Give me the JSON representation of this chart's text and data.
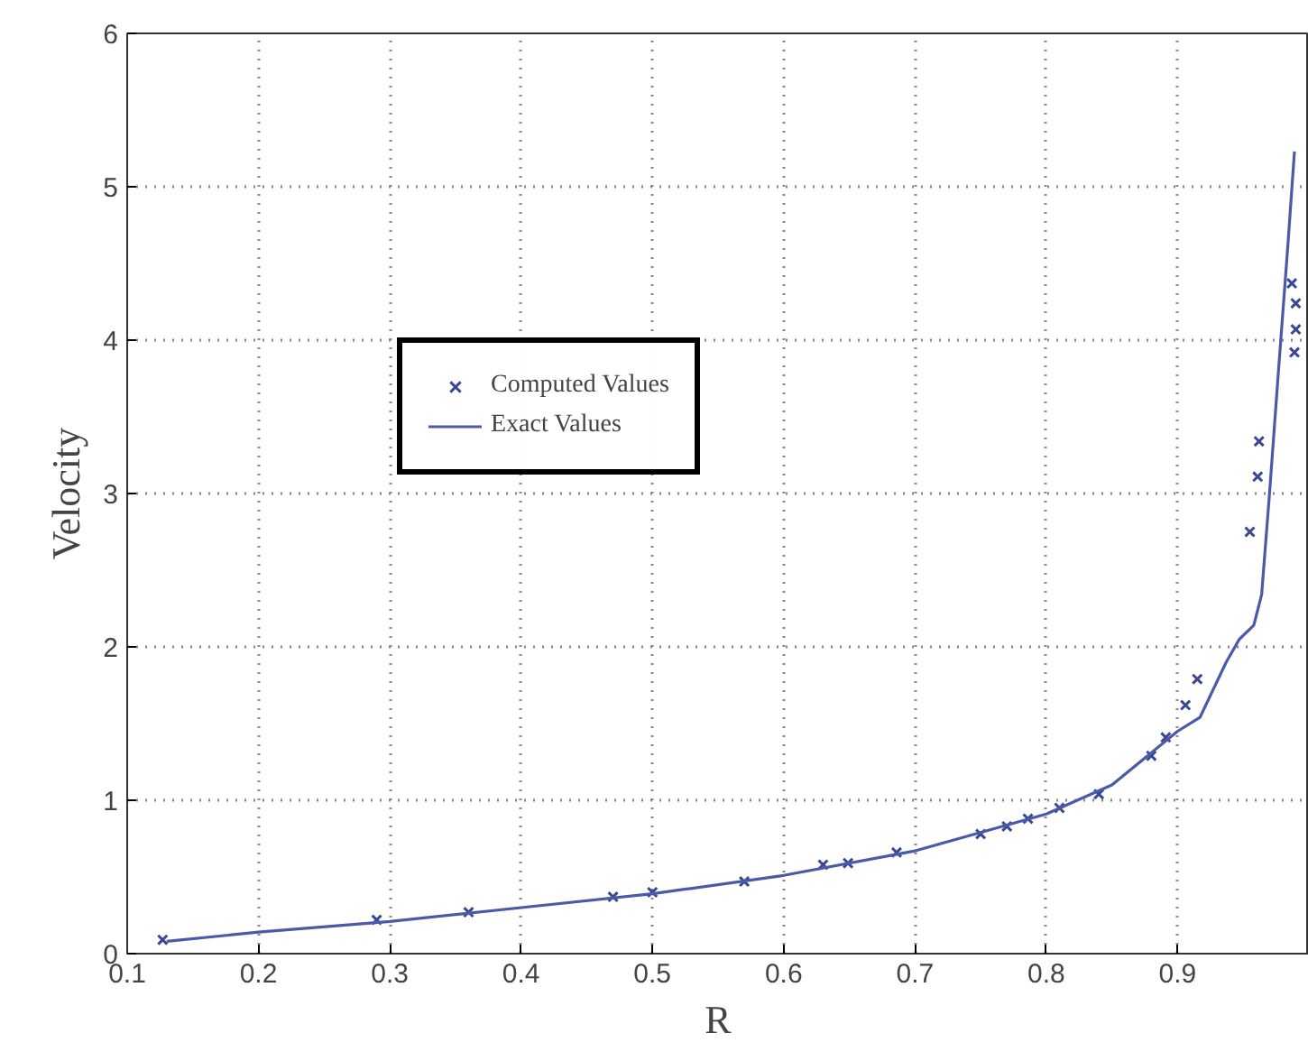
{
  "chart_data": {
    "type": "scatter",
    "xlabel": "R",
    "ylabel": "Velocity",
    "xlim": [
      0.1,
      1.0
    ],
    "ylim": [
      0,
      6
    ],
    "xticks": [
      0.1,
      0.2,
      0.3,
      0.4,
      0.5,
      0.6,
      0.7,
      0.8,
      0.9
    ],
    "yticks": [
      0,
      1,
      2,
      3,
      4,
      5,
      6
    ],
    "grid": true,
    "legend": "left",
    "series": [
      {
        "name": "Computed Values",
        "marker": "cross",
        "color": "#3a4794",
        "x": [
          0.127,
          0.29,
          0.36,
          0.47,
          0.5,
          0.57,
          0.63,
          0.649,
          0.686,
          0.75,
          0.77,
          0.786,
          0.81,
          0.84,
          0.88,
          0.891,
          0.906,
          0.915,
          0.955,
          0.961,
          0.962,
          0.987,
          0.99,
          0.99,
          0.989
        ],
        "values": [
          0.09,
          0.22,
          0.27,
          0.37,
          0.4,
          0.47,
          0.58,
          0.59,
          0.66,
          0.78,
          0.83,
          0.88,
          0.95,
          1.04,
          1.29,
          1.41,
          1.62,
          1.79,
          2.75,
          3.11,
          3.34,
          4.37,
          4.24,
          4.07,
          3.92
        ]
      },
      {
        "name": "Exact Values",
        "type": "line",
        "line_style": "solid",
        "color": "#4a5aa8",
        "x": [
          0.13,
          0.2,
          0.3,
          0.4,
          0.5,
          0.6,
          0.7,
          0.8,
          0.85,
          0.9,
          0.917,
          0.937,
          0.947,
          0.958,
          0.964,
          0.97,
          0.977,
          0.984,
          0.989
        ],
        "values": [
          0.08,
          0.14,
          0.21,
          0.3,
          0.39,
          0.51,
          0.67,
          0.91,
          1.1,
          1.45,
          1.54,
          1.9,
          2.05,
          2.14,
          2.34,
          3.0,
          3.82,
          4.62,
          5.23
        ]
      }
    ]
  }
}
